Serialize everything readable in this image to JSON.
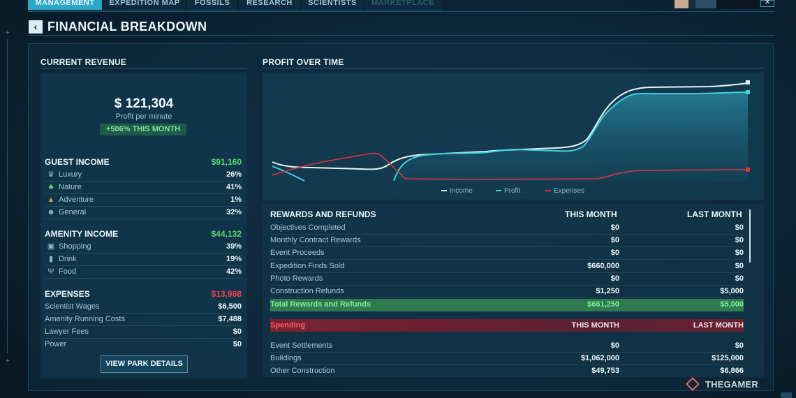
{
  "tabs": [
    {
      "label": "MANAGEMENT",
      "state": "active"
    },
    {
      "label": "EXPEDITION MAP",
      "state": "normal"
    },
    {
      "label": "FOSSILS",
      "state": "normal"
    },
    {
      "label": "RESEARCH",
      "state": "normal"
    },
    {
      "label": "SCIENTISTS",
      "state": "normal"
    },
    {
      "label": "MARKETPLACE",
      "state": "disabled"
    }
  ],
  "close_label": "✕",
  "back_label": "‹",
  "page_title": "FINANCIAL BREAKDOWN",
  "revenue": {
    "title": "CURRENT REVENUE",
    "amount": "$ 121,304",
    "sub": "Profit per minute",
    "badge": "+506% THIS MONTH"
  },
  "guest_income": {
    "title": "GUEST INCOME",
    "total": "$91,160",
    "items": [
      {
        "label": "Luxury",
        "value": "26%",
        "icon": "luxury-icon"
      },
      {
        "label": "Nature",
        "value": "41%",
        "icon": "nature-icon"
      },
      {
        "label": "Adventure",
        "value": "1%",
        "icon": "adventure-icon"
      },
      {
        "label": "General",
        "value": "32%",
        "icon": "general-icon"
      }
    ]
  },
  "amenity_income": {
    "title": "AMENITY INCOME",
    "total": "$44,132",
    "items": [
      {
        "label": "Shopping",
        "value": "39%",
        "icon": "shopping-icon"
      },
      {
        "label": "Drink",
        "value": "19%",
        "icon": "drink-icon"
      },
      {
        "label": "Food",
        "value": "42%",
        "icon": "food-icon"
      }
    ]
  },
  "expenses": {
    "title": "EXPENSES",
    "total": "$13,988",
    "items": [
      {
        "label": "Scientist Wages",
        "value": "$6,500"
      },
      {
        "label": "Amenity Running Costs",
        "value": "$7,488"
      },
      {
        "label": "Lawyer Fees",
        "value": "$0"
      },
      {
        "label": "Power",
        "value": "$0"
      }
    ]
  },
  "view_button": "VIEW PARK DETAILS",
  "profit_chart": {
    "title": "PROFIT OVER TIME",
    "legend": [
      "Income",
      "Profit",
      "Expenses"
    ],
    "colors": {
      "income": "#e8f4f8",
      "profit": "#3fd0dc",
      "expenses": "#e0343c",
      "fill": "#1f6a80"
    }
  },
  "rewards": {
    "title": "REWARDS AND REFUNDS",
    "col_this": "THIS MONTH",
    "col_last": "LAST MONTH",
    "rows": [
      {
        "label": "Objectives Completed",
        "this": "$0",
        "last": "$0"
      },
      {
        "label": "Monthly Contract Rewards",
        "this": "$0",
        "last": "$0"
      },
      {
        "label": "Event Proceeds",
        "this": "$0",
        "last": "$0"
      },
      {
        "label": "Expedition Finds Sold",
        "this": "$660,000",
        "last": "$0"
      },
      {
        "label": "Photo Rewards",
        "this": "$0",
        "last": "$0"
      },
      {
        "label": "Construction Refunds",
        "this": "$1,250",
        "last": "$5,000"
      }
    ],
    "total": {
      "label": "Total Rewards and Refunds",
      "this": "$661,250",
      "last": "$5,000"
    }
  },
  "spending": {
    "title": "Spending",
    "col_this": "THIS MONTH",
    "col_last": "LAST MONTH",
    "rows": [
      {
        "label": "Event Settlements",
        "this": "$0",
        "last": "$0"
      },
      {
        "label": "Buildings",
        "this": "$1,062,000",
        "last": "$125,000"
      },
      {
        "label": "Other Construction",
        "this": "$49,753",
        "last": "$6,866"
      }
    ]
  },
  "watermark": "THEGAMER"
}
